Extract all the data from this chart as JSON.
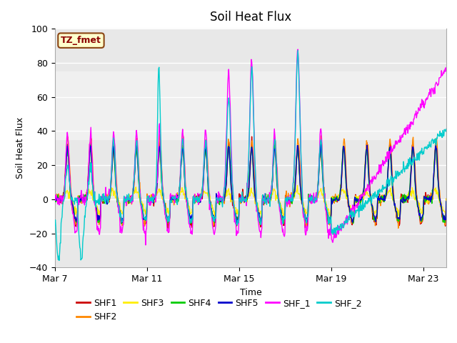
{
  "title": "Soil Heat Flux",
  "xlabel": "Time",
  "ylabel": "Soil Heat Flux",
  "ylim": [
    -40,
    100
  ],
  "yticks": [
    -40,
    -20,
    0,
    20,
    40,
    60,
    80,
    100
  ],
  "shaded_region_lo": 35,
  "shaded_region_hi": 75,
  "xtick_labels": [
    "Mar 7",
    "Mar 11",
    "Mar 15",
    "Mar 19",
    "Mar 23"
  ],
  "xtick_pos": [
    0,
    4,
    8,
    12,
    16
  ],
  "xlim": [
    0,
    17
  ],
  "annotation_box": "TZ_fmet",
  "series_colors": {
    "SHF1": "#cc0000",
    "SHF2": "#ff8800",
    "SHF3": "#ffee00",
    "SHF4": "#00cc00",
    "SHF5": "#0000cc",
    "SHF_1": "#ff00ff",
    "SHF_2": "#00cccc"
  },
  "background_color": "#f0f0f0",
  "grid_color": "#ffffff"
}
